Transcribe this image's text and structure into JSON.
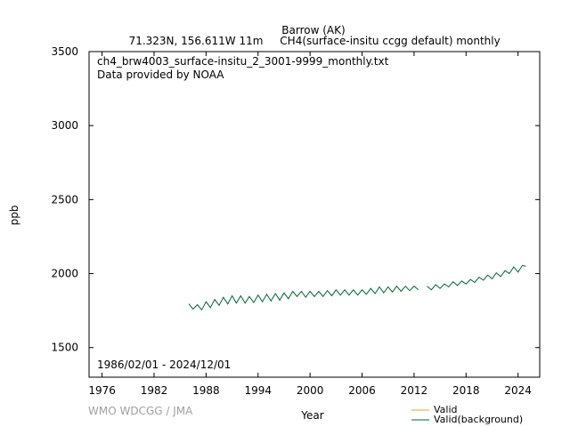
{
  "header": {
    "station": "Barrow (AK)",
    "location": "71.323N, 156.611W 11m",
    "parameter": "CH4(surface-insitu ccgg default) monthly"
  },
  "info": {
    "filename": "ch4_brw4003_surface-insitu_2_3001-9999_monthly.txt",
    "provider": "Data provided by NOAA",
    "period": "1986/02/01 - 2024/12/01"
  },
  "credit": "WMO WDCGG / JMA",
  "colors": {
    "valid": "#f0a020",
    "background": "#006633"
  },
  "chart_data": {
    "type": "line",
    "title": "Barrow (AK)",
    "xlabel": "Year",
    "ylabel": "ppb",
    "xlim": [
      1974.5,
      2026.5
    ],
    "ylim": [
      1300,
      3500
    ],
    "xticks": [
      1976,
      1982,
      1988,
      1994,
      2000,
      2006,
      2012,
      2018,
      2024
    ],
    "yticks": [
      1500,
      2000,
      2500,
      3000,
      3500
    ],
    "legend": "bottom-right",
    "grid": false,
    "series": [
      {
        "name": "Valid",
        "color": "#f0a020",
        "x": [],
        "y": []
      },
      {
        "name": "Valid(background)",
        "color": "#006633",
        "x": [
          1986.0,
          1986.5,
          1987.0,
          1987.5,
          1988.0,
          1988.5,
          1989.0,
          1989.5,
          1990.0,
          1990.5,
          1991.0,
          1991.5,
          1992.0,
          1992.5,
          1993.0,
          1993.5,
          1994.0,
          1994.5,
          1995.0,
          1995.5,
          1996.0,
          1996.5,
          1997.0,
          1997.5,
          1998.0,
          1998.5,
          1999.0,
          1999.5,
          2000.0,
          2000.5,
          2001.0,
          2001.5,
          2002.0,
          2002.5,
          2003.0,
          2003.5,
          2004.0,
          2004.5,
          2005.0,
          2005.5,
          2006.0,
          2006.5,
          2007.0,
          2007.5,
          2008.0,
          2008.5,
          2009.0,
          2009.5,
          2010.0,
          2010.5,
          2011.0,
          2011.5,
          2012.0,
          2012.5,
          2013.5,
          2014.0,
          2014.5,
          2015.0,
          2015.5,
          2016.0,
          2016.5,
          2017.0,
          2017.5,
          2018.0,
          2018.5,
          2019.0,
          2019.5,
          2020.0,
          2020.5,
          2021.0,
          2021.5,
          2022.0,
          2022.5,
          2023.0,
          2023.5,
          2024.0,
          2024.5,
          2024.9
        ],
        "y": [
          1795,
          1760,
          1790,
          1755,
          1810,
          1770,
          1825,
          1785,
          1840,
          1795,
          1850,
          1800,
          1850,
          1800,
          1845,
          1805,
          1855,
          1810,
          1860,
          1815,
          1865,
          1820,
          1870,
          1830,
          1880,
          1845,
          1880,
          1840,
          1880,
          1845,
          1880,
          1845,
          1885,
          1850,
          1890,
          1855,
          1890,
          1855,
          1890,
          1855,
          1890,
          1860,
          1900,
          1865,
          1910,
          1870,
          1910,
          1875,
          1915,
          1880,
          1915,
          1885,
          1915,
          1890,
          1915,
          1890,
          1925,
          1900,
          1930,
          1910,
          1945,
          1920,
          1950,
          1930,
          1960,
          1940,
          1975,
          1955,
          1990,
          1965,
          2005,
          1980,
          2020,
          2000,
          2045,
          2010,
          2055,
          2050
        ]
      }
    ]
  }
}
